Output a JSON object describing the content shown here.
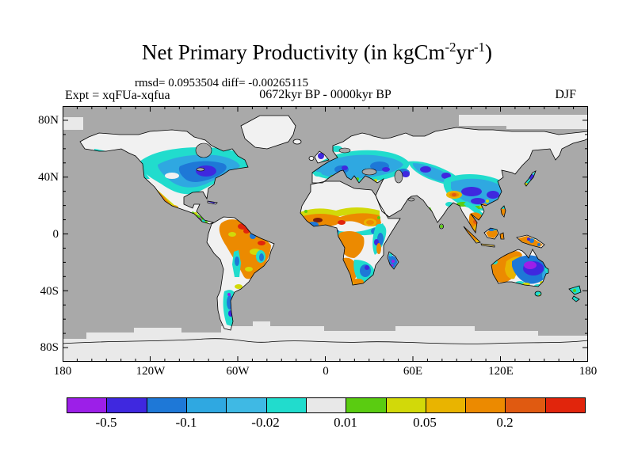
{
  "title": {
    "main": "Net Primary Productivity (in kgCm",
    "sup1": "-2",
    "mid": "yr",
    "sup2": "-1",
    "end": ")"
  },
  "stats_line": "rmsd= 0.0953504 diff= -0.00265115",
  "experiment_label": "Expt = xqFUa-xqfua",
  "period_label": "0672kyr BP - 0000kyr BP",
  "season_label": "DJF",
  "axes": {
    "lat": [
      "80N",
      "40N",
      "0",
      "40S",
      "80S"
    ],
    "lon": [
      "180",
      "120W",
      "60W",
      "0",
      "60E",
      "120E",
      "180"
    ]
  },
  "colorbar": {
    "labels": [
      "-0.5",
      "-0.1",
      "-0.02",
      "0.01",
      "0.05",
      "0.2"
    ],
    "colors": [
      "#9C1FE8",
      "#3F28DF",
      "#1E78D7",
      "#2FA8E1",
      "#3FB9E4",
      "#21DCCD",
      "#E8E8E8",
      "#5ACC11",
      "#D2D909",
      "#E9B400",
      "#EC8A00",
      "#E05A11",
      "#E1250C"
    ],
    "levels": [
      -0.5,
      -0.2,
      -0.1,
      -0.05,
      -0.02,
      -0.01,
      0.01,
      0.02,
      0.05,
      0.1,
      0.2,
      0.5
    ]
  },
  "map_colors": {
    "ocean": "#A9A9A9",
    "land": "#F1F1F1",
    "ice": "#E9E9E9",
    "coast": "#000000"
  },
  "chart_data": {
    "type": "heatmap",
    "subtype": "filled-contour world map (equirectangular lat-lon)",
    "title": "Net Primary Productivity (in kgCm-2yr-1)",
    "variable": "Net Primary Productivity difference",
    "units": "kgC m-2 yr-1",
    "experiment": "xqFUa-xqfua",
    "comparison": "0672kyr BP - 0000kyr BP",
    "season": "DJF",
    "stats": {
      "rmsd": 0.0953504,
      "diff": -0.00265115
    },
    "x_range_lon": [
      -180,
      180
    ],
    "y_range_lat": [
      -90,
      90
    ],
    "xlabel_ticks": [
      "180",
      "120W",
      "60W",
      "0",
      "60E",
      "120E",
      "180"
    ],
    "ylabel_ticks": [
      "80N",
      "40N",
      "0",
      "40S",
      "80S"
    ],
    "contour_levels": [
      -0.5,
      -0.2,
      -0.1,
      -0.05,
      -0.02,
      -0.01,
      0.01,
      0.02,
      0.05,
      0.1,
      0.2,
      0.5
    ],
    "labeled_levels": [
      -0.5,
      -0.1,
      -0.02,
      0.01,
      0.05,
      0.2
    ],
    "legend_position": "bottom horizontal colorbar",
    "background": "ocean masked mid-gray; land with |anomaly|<0.01 near-white; polar sea ice light gray",
    "regions": [
      {
        "region": "Eastern/central North America",
        "anomaly": "negative, -0.05 to -0.5 (blue core around Great Lakes/Midwest)"
      },
      {
        "region": "US Southwest and Mexico",
        "anomaly": "positive, 0.05 to 0.5 (orange/yellow)"
      },
      {
        "region": "Central America",
        "anomaly": "mixed green/cyan with small strong-negative purple spot"
      },
      {
        "region": "Amazon / tropical South America",
        "anomaly": "positive, 0.1 to >0.5 (orange with red spots)"
      },
      {
        "region": "Andes and east Brazil coast",
        "anomaly": "negative patches -0.02 to -0.1"
      },
      {
        "region": "Patagonia",
        "anomaly": "negative, cyan/blue with purple specks"
      },
      {
        "region": "Western/central Europe to Russia ~50N",
        "anomaly": "negative band -0.02 to -0.2; dark blue spot over UK"
      },
      {
        "region": "Sahel band",
        "anomaly": "positive 0.1-0.5 with dark red maxima; Sahara no-change white"
      },
      {
        "region": "Guinea coast / sub-Sahel band",
        "anomaly": "negative cyan/blue band"
      },
      {
        "region": "Congo basin",
        "anomaly": "positive orange"
      },
      {
        "region": "East Africa",
        "anomaly": "negative cyan/blue"
      },
      {
        "region": "Southern Africa",
        "anomaly": "orange west, blue southeast, orange south coast"
      },
      {
        "region": "Madagascar",
        "anomaly": "strong negative blue/purple"
      },
      {
        "region": "Central Asia ~50N and Tibet/south China",
        "anomaly": "negative -0.05 to -0.5 (large blue region, dark cores)"
      },
      {
        "region": "Himalaya spot",
        "anomaly": "positive orange spot"
      },
      {
        "region": "Indochina, Indonesia, New Guinea",
        "anomaly": "positive orange with small blue spots"
      },
      {
        "region": "Japan",
        "anomaly": "negative cyan with dark blue spot"
      },
      {
        "region": "Central-east Australia",
        "anomaly": "strong negative, purple core (< -0.5)"
      },
      {
        "region": "West/north Australia rim",
        "anomaly": "positive orange"
      },
      {
        "region": "New Zealand",
        "anomaly": "weak negative cyan/green"
      },
      {
        "region": "Greenland, Siberia, Sahara, Arabia, India interior, Antarctica",
        "anomaly": "near zero / no data (white)"
      }
    ]
  }
}
